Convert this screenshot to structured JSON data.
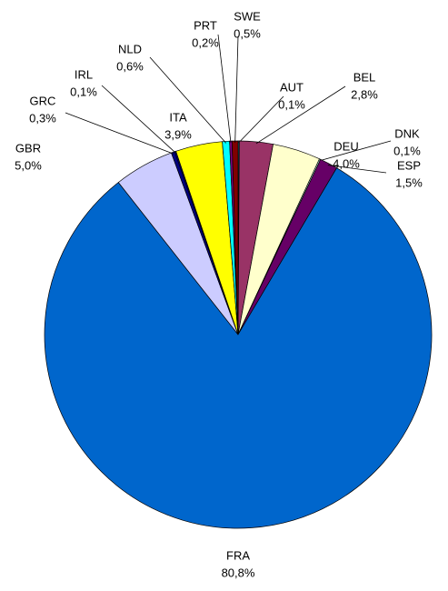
{
  "chart_data": {
    "type": "pie",
    "categories": [
      "AUT",
      "BEL",
      "DEU",
      "DNK",
      "ESP",
      "FRA",
      "GBR",
      "GRC",
      "IRL",
      "ITA",
      "NLD",
      "PRT",
      "SWE"
    ],
    "values": [
      0.1,
      2.8,
      4.0,
      0.1,
      1.5,
      80.8,
      5.0,
      0.3,
      0.1,
      3.9,
      0.6,
      0.2,
      0.5
    ],
    "value_labels": [
      "0,1%",
      "2,8%",
      "4,0%",
      "0,1%",
      "1,5%",
      "80,8%",
      "5,0%",
      "0,3%",
      "0,1%",
      "3,9%",
      "0,6%",
      "0,2%",
      "0,5%"
    ],
    "colors": [
      "#008080",
      "#993366",
      "#FFFFCC",
      "#CCFFFF",
      "#660066",
      "#0066CC",
      "#CCCCFF",
      "#000080",
      "#000080",
      "#FFFF00",
      "#00FFFF",
      "#800080",
      "#800000"
    ]
  }
}
